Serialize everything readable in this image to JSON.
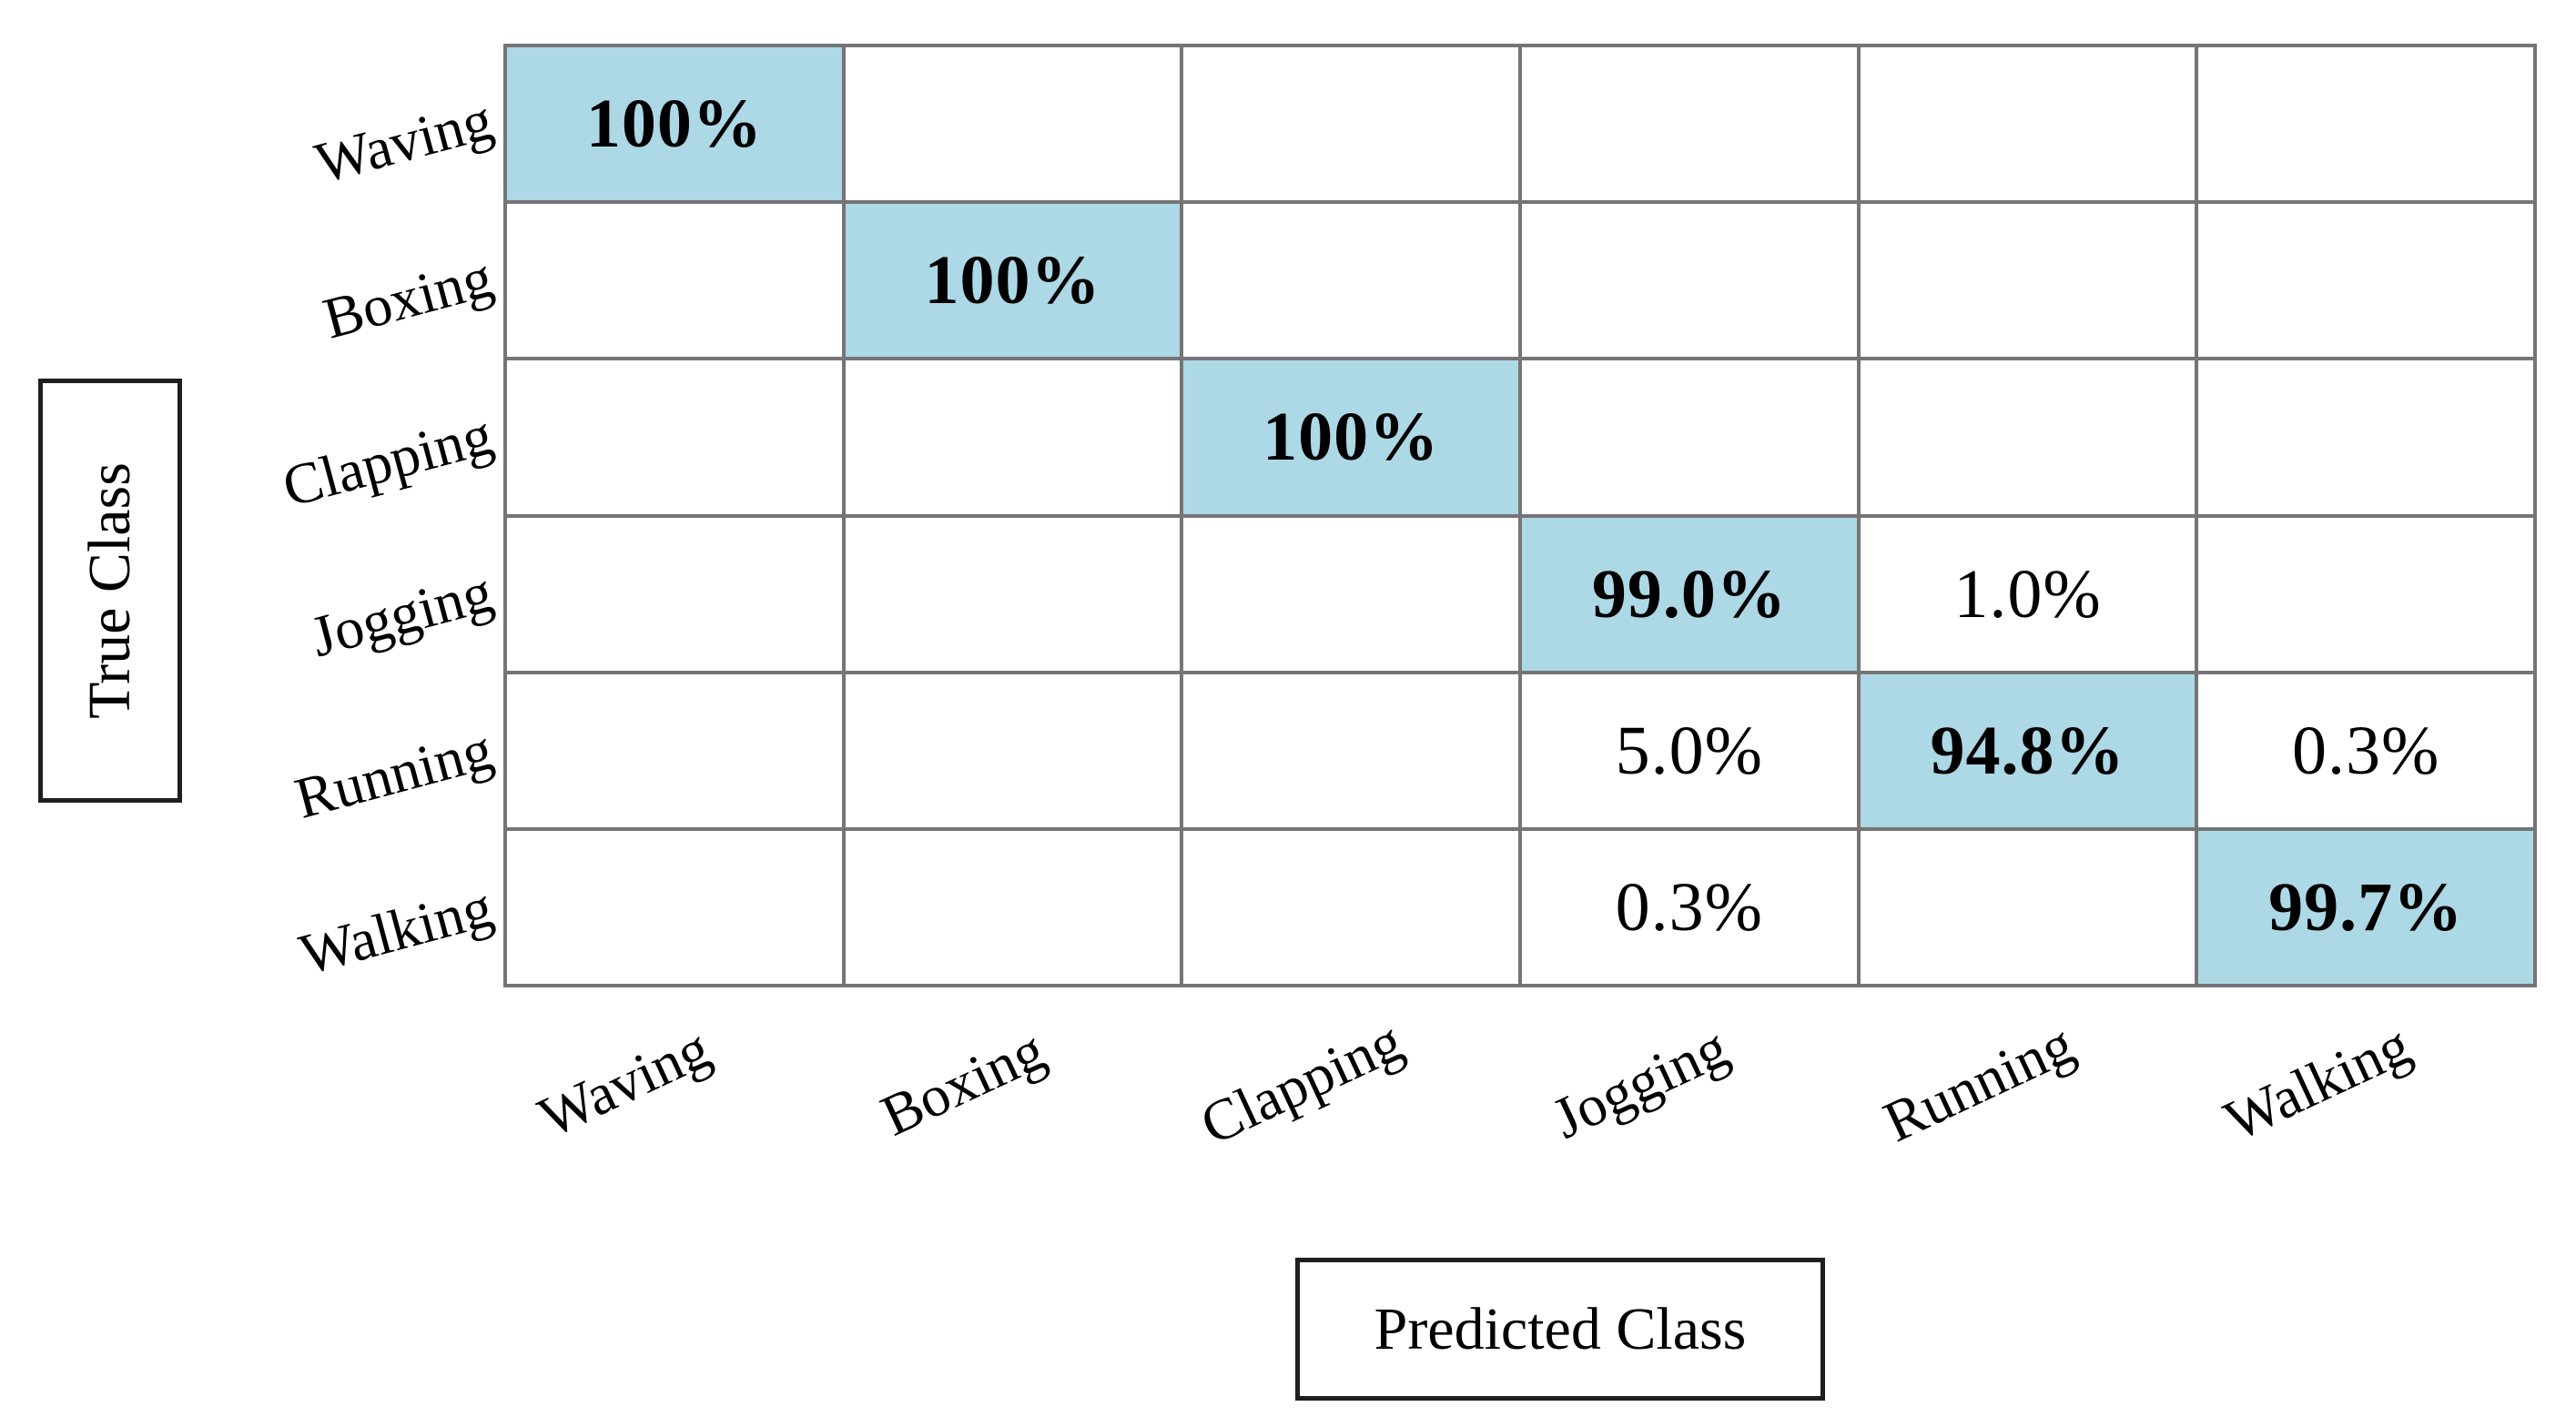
{
  "chart_data": {
    "type": "heatmap",
    "subtype": "confusion-matrix",
    "title": "",
    "xlabel": "Predicted Class",
    "ylabel": "True Class",
    "categories": [
      "Waving",
      "Boxing",
      "Clapping",
      "Jogging",
      "Running",
      "Walking"
    ],
    "rows": [
      {
        "true_class": "Waving",
        "cell_labels": [
          "100%",
          "",
          "",
          "",
          "",
          ""
        ]
      },
      {
        "true_class": "Boxing",
        "cell_labels": [
          "",
          "100%",
          "",
          "",
          "",
          ""
        ]
      },
      {
        "true_class": "Clapping",
        "cell_labels": [
          "",
          "",
          "100%",
          "",
          "",
          ""
        ]
      },
      {
        "true_class": "Jogging",
        "cell_labels": [
          "",
          "",
          "",
          "99.0%",
          "1.0%",
          ""
        ]
      },
      {
        "true_class": "Running",
        "cell_labels": [
          "",
          "",
          "",
          "5.0%",
          "94.8%",
          "0.3%"
        ]
      },
      {
        "true_class": "Walking",
        "cell_labels": [
          "",
          "",
          "",
          "0.3%",
          "",
          "99.7%"
        ]
      }
    ],
    "values_numeric_percent": [
      [
        100,
        0,
        0,
        0,
        0,
        0
      ],
      [
        0,
        100,
        0,
        0,
        0,
        0
      ],
      [
        0,
        0,
        100,
        0,
        0,
        0
      ],
      [
        0,
        0,
        0,
        99.0,
        1.0,
        0
      ],
      [
        0,
        0,
        0,
        5.0,
        94.8,
        0.3
      ],
      [
        0,
        0,
        0,
        0.3,
        0,
        99.7
      ]
    ],
    "highlighted_cells": "diagonal",
    "diagonal_bold": true,
    "legend": null,
    "grid_on": true,
    "colors": {
      "highlight": "#ADD8E6",
      "grid_line": "#757575",
      "text": "#000000",
      "background": "#ffffff",
      "axis_box_border": "#1f1f1f"
    }
  }
}
